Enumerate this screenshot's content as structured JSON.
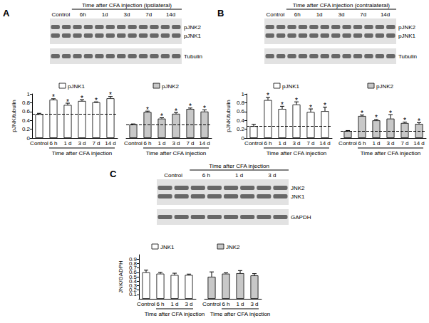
{
  "chart_data": [
    {
      "type": "bar",
      "title": "A",
      "blot_title": "Time after CFA injection (ipsilateral)",
      "blot_lanes": [
        "Control",
        "6h",
        "1d",
        "3d",
        "7d",
        "14d"
      ],
      "blot_bands": [
        "pJNK2",
        "pJNK1",
        "Tubulin"
      ],
      "ylabel": "pJNK/tubulin",
      "xlabel": "Time after CFA injection",
      "categories": [
        "Control",
        "6 h",
        "1 d",
        "3 d",
        "7 d",
        "14 d"
      ],
      "series": [
        {
          "name": "pJNK1",
          "color": "#ffffff",
          "values": [
            0.54,
            0.87,
            0.75,
            0.84,
            0.81,
            0.9
          ],
          "errors": [
            0.02,
            0.02,
            0.04,
            0.03,
            0.01,
            0.04
          ],
          "annotations": [
            null,
            "*",
            "*",
            "*",
            "*",
            "*"
          ],
          "baseline": 0.54
        },
        {
          "name": "pJNK2",
          "color": "#c8c8c8",
          "values": [
            0.31,
            0.59,
            0.44,
            0.55,
            0.66,
            0.6
          ],
          "errors": [
            0.01,
            0.02,
            0.02,
            0.03,
            0.02,
            0.04
          ],
          "annotations": [
            null,
            "*",
            "*",
            "*",
            "*",
            "*"
          ],
          "baseline": 0.31
        }
      ],
      "ylim": [
        0,
        1
      ],
      "yticks": [
        0,
        0.2,
        0.4,
        0.6,
        0.8,
        1
      ]
    },
    {
      "type": "bar",
      "title": "B",
      "blot_title": "Time after CFA injection (contralateral)",
      "blot_lanes": [
        "Control",
        "6h",
        "1d",
        "3d",
        "7d",
        "14d"
      ],
      "blot_bands": [
        "pJNK2",
        "pJNK1",
        "Tubulin"
      ],
      "ylabel": "pJNK/tubulin",
      "xlabel": "Time after CFA injection",
      "categories": [
        "Control",
        "6 h",
        "1 d",
        "3 d",
        "7 d",
        "14 d"
      ],
      "series": [
        {
          "name": "pJNK1",
          "color": "#ffffff",
          "values": [
            0.27,
            0.86,
            0.66,
            0.76,
            0.59,
            0.61
          ],
          "errors": [
            0.04,
            0.06,
            0.06,
            0.06,
            0.07,
            0.09
          ],
          "annotations": [
            null,
            "*",
            "*",
            "*",
            "*",
            "*"
          ],
          "baseline": 0.27
        },
        {
          "name": "pJNK2",
          "color": "#c8c8c8",
          "values": [
            0.16,
            0.5,
            0.4,
            0.44,
            0.34,
            0.32
          ],
          "errors": [
            0.01,
            0.02,
            0.02,
            0.09,
            0.02,
            0.03
          ],
          "annotations": [
            null,
            "*",
            "*",
            "*",
            "*",
            "*"
          ],
          "baseline": 0.16
        }
      ],
      "ylim": [
        0,
        1
      ],
      "yticks": [
        0,
        0.2,
        0.4,
        0.6,
        0.8,
        1
      ]
    },
    {
      "type": "bar",
      "title": "C",
      "blot_title": "Time after CFA injection",
      "blot_lanes": [
        "Control",
        "6 h",
        "1 d",
        "3 d"
      ],
      "blot_bands": [
        "JNK2",
        "JNK1",
        "GAPDH"
      ],
      "ylabel": "JNK/GADPH",
      "xlabel": "Time after CFA injection",
      "categories": [
        "Control",
        "6 h",
        "1 d",
        "3 d"
      ],
      "series": [
        {
          "name": "JNK1",
          "color": "#ffffff",
          "values": [
            0.6,
            0.57,
            0.54,
            0.54
          ],
          "errors": [
            0.05,
            0.03,
            0.04,
            0.02
          ]
        },
        {
          "name": "JNK2",
          "color": "#c8c8c8",
          "values": [
            0.5,
            0.57,
            0.58,
            0.53
          ],
          "errors": [
            0.11,
            0.02,
            0.06,
            0.04
          ]
        }
      ],
      "ylim": [
        0,
        1
      ],
      "yticks": [
        0,
        0.1,
        0.2,
        0.3,
        0.4,
        0.5,
        0.6,
        0.7,
        0.8,
        0.9,
        1
      ]
    }
  ]
}
